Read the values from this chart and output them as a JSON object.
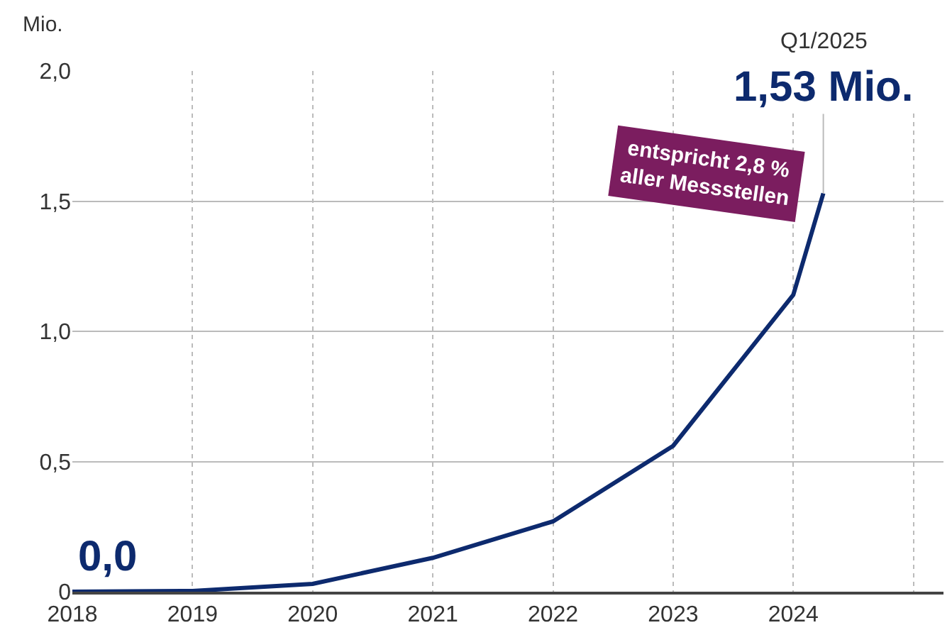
{
  "chart_data": {
    "type": "line",
    "ylabel": "Mio.",
    "x": [
      2018,
      2019,
      2020,
      2021,
      2022,
      2023,
      2024,
      2024.25
    ],
    "series": [
      {
        "color": "#0d2a6e",
        "values": [
          0,
          0.003,
          0.03,
          0.13,
          0.27,
          0.56,
          1.14,
          1.53
        ],
        "value_labels": [
          "0,0",
          null,
          null,
          null,
          null,
          null,
          null,
          "1,53 Mio."
        ]
      }
    ],
    "xlim": [
      2018,
      2025.25
    ],
    "xticks": [
      2018,
      2019,
      2020,
      2021,
      2022,
      2023,
      2024,
      {
        "value": 2025,
        "label": null
      }
    ],
    "ylim": [
      0,
      2
    ],
    "yticks": [
      {
        "value": 0,
        "label": "0"
      },
      {
        "value": 0.5,
        "label": "0,5"
      },
      {
        "value": 1,
        "label": "1,0"
      },
      {
        "value": 1.5,
        "label": "1,5"
      },
      {
        "value": 2,
        "label": "2,0"
      }
    ],
    "grid": true,
    "marker": "none",
    "line_style": "solid",
    "annotations": [
      "Q1/2025",
      {
        "text": "entspricht 2,8 %\naller Messstellen",
        "x": 2024.25,
        "y": 1.53
      }
    ]
  }
}
